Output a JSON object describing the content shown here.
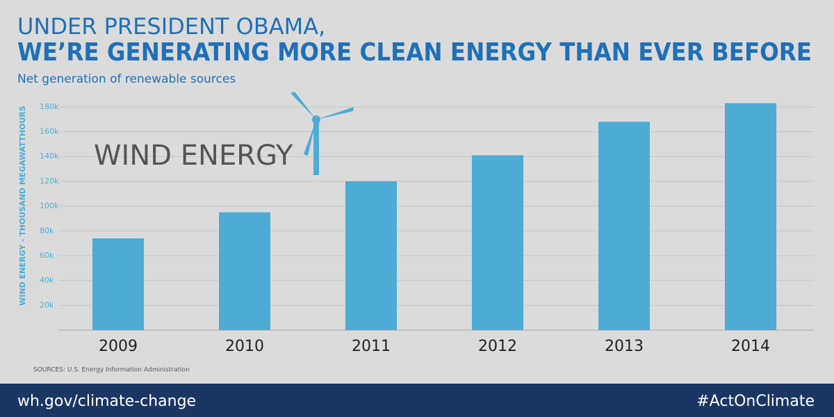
{
  "chart_data": {
    "type": "bar",
    "title": [
      "UNDER PRESIDENT OBAMA,",
      "WE’RE GENERATING MORE CLEAN ENERGY THAN EVER BEFORE"
    ],
    "subtitle": "Net generation of renewable sources",
    "ylabel": "WIND ENERGY - THOUSAND MEGAWATTHOURS",
    "annotation": "WIND ENERGY",
    "source": "SOURCES: U.S. Energy Information Administration",
    "categories": [
      "2009",
      "2010",
      "2011",
      "2012",
      "2013",
      "2014"
    ],
    "values": [
      74000,
      95000,
      120000,
      141000,
      168000,
      183000
    ],
    "color": "#4eabd6",
    "ylim": [
      0,
      190000
    ],
    "yticks": [
      {
        "value": 20000,
        "label": "20k"
      },
      {
        "value": 40000,
        "label": "40k"
      },
      {
        "value": 60000,
        "label": "60k"
      },
      {
        "value": 80000,
        "label": "80k"
      },
      {
        "value": 100000,
        "label": "100k"
      },
      {
        "value": 120000,
        "label": "120k"
      },
      {
        "value": 140000,
        "label": "140k"
      },
      {
        "value": 160000,
        "label": "160k"
      },
      {
        "value": 180000,
        "label": "180k"
      }
    ],
    "grid": true
  },
  "footer": {
    "link": "wh.gov/climate-change",
    "hashtag": "#ActOnClimate"
  }
}
